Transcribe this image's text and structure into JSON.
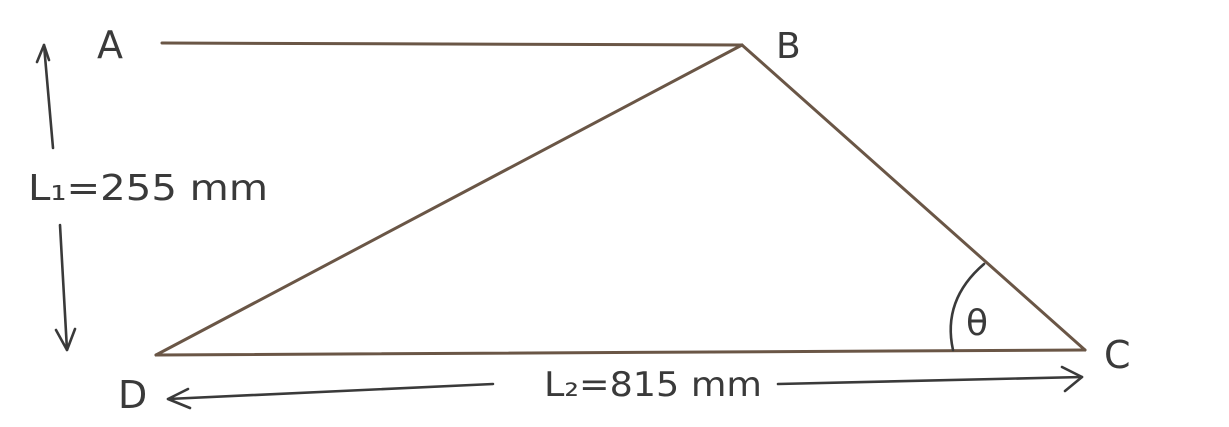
{
  "diagram": {
    "points": {
      "a": "A",
      "b": "B",
      "c": "C",
      "d": "D"
    },
    "labels": {
      "l1": "L₁=255 mm",
      "l2": "L₂=815 mm",
      "angle": "θ"
    },
    "colors": {
      "line": "#6a5646",
      "ink": "#3a3a3a",
      "background": "#ffffff"
    }
  }
}
